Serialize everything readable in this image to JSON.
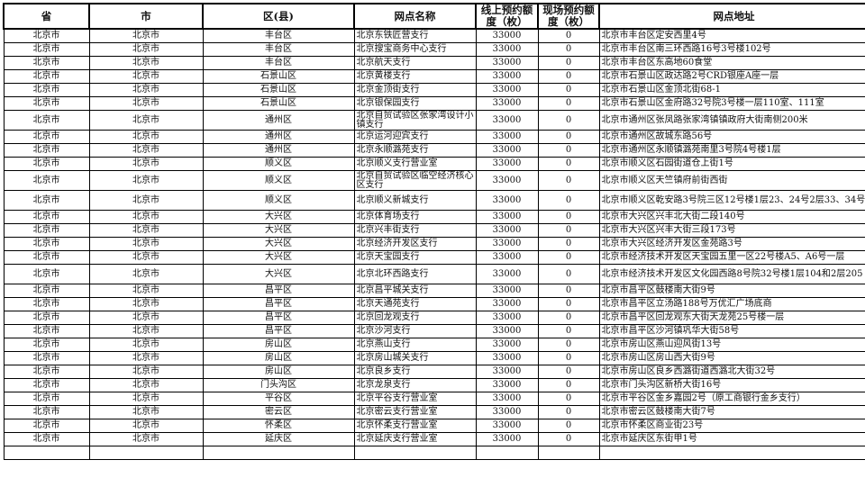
{
  "header": {
    "province": "省",
    "city": "市",
    "district": "区(县)",
    "branch": "网点名称",
    "online": "线上预约额度（枚）",
    "onsite": "现场预约额度（枚）",
    "address": "网点地址"
  },
  "rows": [
    {
      "province": "北京市",
      "city": "北京市",
      "district": "丰台区",
      "branch": "北京东铁匠营支行",
      "online": "33000",
      "onsite": "0",
      "address": "北京市丰台区定安西里4号"
    },
    {
      "province": "北京市",
      "city": "北京市",
      "district": "丰台区",
      "branch": "北京搜宝商务中心支行",
      "online": "33000",
      "onsite": "0",
      "address": "北京市丰台区南三环西路16号3号楼102号"
    },
    {
      "province": "北京市",
      "city": "北京市",
      "district": "丰台区",
      "branch": "北京航天支行",
      "online": "33000",
      "onsite": "0",
      "address": "北京市丰台区东高地60食堂"
    },
    {
      "province": "北京市",
      "city": "北京市",
      "district": "石景山区",
      "branch": "北京黄楼支行",
      "online": "33000",
      "onsite": "0",
      "address": "北京市石景山区政达路2号CRD银座A座一层"
    },
    {
      "province": "北京市",
      "city": "北京市",
      "district": "石景山区",
      "branch": "北京金顶街支行",
      "online": "33000",
      "onsite": "0",
      "address": "北京市石景山区金顶北街68-1"
    },
    {
      "province": "北京市",
      "city": "北京市",
      "district": "石景山区",
      "branch": "北京银保园支行",
      "online": "33000",
      "onsite": "0",
      "address": "北京市石景山区金府路32号院3号楼一层110室、111室"
    },
    {
      "province": "北京市",
      "city": "北京市",
      "district": "通州区",
      "branch": "北京自贸试验区张家湾设计小镇支行",
      "online": "33000",
      "onsite": "0",
      "address": "北京市通州区张凤路张家湾镇镇政府大街南侧200米",
      "tall": true
    },
    {
      "province": "北京市",
      "city": "北京市",
      "district": "通州区",
      "branch": "北京运河迎宾支行",
      "online": "33000",
      "onsite": "0",
      "address": "北京市通州区故城东路56号"
    },
    {
      "province": "北京市",
      "city": "北京市",
      "district": "通州区",
      "branch": "北京永顺潞苑支行",
      "online": "33000",
      "onsite": "0",
      "address": "北京市通州区永顺镇潞苑南里3号院4号楼1层"
    },
    {
      "province": "北京市",
      "city": "北京市",
      "district": "顺义区",
      "branch": "北京顺义支行营业室",
      "online": "33000",
      "onsite": "0",
      "address": "北京市顺义区石园街道仓上街1号"
    },
    {
      "province": "北京市",
      "city": "北京市",
      "district": "顺义区",
      "branch": "北京自贸试验区临空经济核心区支行",
      "online": "33000",
      "onsite": "0",
      "address": "北京市顺义区天竺镇府前街西街",
      "tall": true
    },
    {
      "province": "北京市",
      "city": "北京市",
      "district": "顺义区",
      "branch": "北京顺义新城支行",
      "online": "33000",
      "onsite": "0",
      "address": "北京市顺义区乾安路3号院三区12号楼1层23、24号2层33、34号",
      "tall": true
    },
    {
      "province": "北京市",
      "city": "北京市",
      "district": "大兴区",
      "branch": "北京体育场支行",
      "online": "33000",
      "onsite": "0",
      "address": "北京市大兴区兴丰北大街二段140号"
    },
    {
      "province": "北京市",
      "city": "北京市",
      "district": "大兴区",
      "branch": "北京兴丰街支行",
      "online": "33000",
      "onsite": "0",
      "address": "北京市大兴区兴丰大街三段173号"
    },
    {
      "province": "北京市",
      "city": "北京市",
      "district": "大兴区",
      "branch": "北京经济开发区支行",
      "online": "33000",
      "onsite": "0",
      "address": "北京市大兴区经济开发区金苑路3号"
    },
    {
      "province": "北京市",
      "city": "北京市",
      "district": "大兴区",
      "branch": "北京天宝园支行",
      "online": "33000",
      "onsite": "0",
      "address": "北京市经济技术开发区天宝园五里一区22号楼A5、A6号一层"
    },
    {
      "province": "北京市",
      "city": "北京市",
      "district": "大兴区",
      "branch": "北京北环西路支行",
      "online": "33000",
      "onsite": "0",
      "address": "北京市经济技术开发区文化园西路8号院32号楼1层104和2层205",
      "tall": true
    },
    {
      "province": "北京市",
      "city": "北京市",
      "district": "昌平区",
      "branch": "北京昌平城关支行",
      "online": "33000",
      "onsite": "0",
      "address": "北京市昌平区鼓楼南大街9号"
    },
    {
      "province": "北京市",
      "city": "北京市",
      "district": "昌平区",
      "branch": "北京天通苑支行",
      "online": "33000",
      "onsite": "0",
      "address": "北京市昌平区立汤路188号万优汇广场底商"
    },
    {
      "province": "北京市",
      "city": "北京市",
      "district": "昌平区",
      "branch": "北京回龙观支行",
      "online": "33000",
      "onsite": "0",
      "address": "北京市昌平区回龙观东大街天龙苑25号楼一层"
    },
    {
      "province": "北京市",
      "city": "北京市",
      "district": "昌平区",
      "branch": "北京沙河支行",
      "online": "33000",
      "onsite": "0",
      "address": "北京市昌平区沙河镇巩华大街58号"
    },
    {
      "province": "北京市",
      "city": "北京市",
      "district": "房山区",
      "branch": "北京燕山支行",
      "online": "33000",
      "onsite": "0",
      "address": "北京市房山区燕山迎风街13号"
    },
    {
      "province": "北京市",
      "city": "北京市",
      "district": "房山区",
      "branch": "北京房山城关支行",
      "online": "33000",
      "onsite": "0",
      "address": "北京市房山区房山西大街9号"
    },
    {
      "province": "北京市",
      "city": "北京市",
      "district": "房山区",
      "branch": "北京良乡支行",
      "online": "33000",
      "onsite": "0",
      "address": "北京市房山区良乡西潞街道西潞北大街32号"
    },
    {
      "province": "北京市",
      "city": "北京市",
      "district": "门头沟区",
      "branch": "北京龙泉支行",
      "online": "33000",
      "onsite": "0",
      "address": "北京市门头沟区新桥大街16号"
    },
    {
      "province": "北京市",
      "city": "北京市",
      "district": "平谷区",
      "branch": "北京平谷支行营业室",
      "online": "33000",
      "onsite": "0",
      "address": "北京市平谷区金乡嘉园2号（原工商银行金乡支行）"
    },
    {
      "province": "北京市",
      "city": "北京市",
      "district": "密云区",
      "branch": "北京密云支行营业室",
      "online": "33000",
      "onsite": "0",
      "address": "北京市密云区鼓楼南大街7号"
    },
    {
      "province": "北京市",
      "city": "北京市",
      "district": "怀柔区",
      "branch": "北京怀柔支行营业室",
      "online": "33000",
      "onsite": "0",
      "address": "北京市怀柔区商业街23号"
    },
    {
      "province": "北京市",
      "city": "北京市",
      "district": "延庆区",
      "branch": "北京延庆支行营业室",
      "online": "33000",
      "onsite": "0",
      "address": "北京市延庆区东街甲1号"
    }
  ]
}
